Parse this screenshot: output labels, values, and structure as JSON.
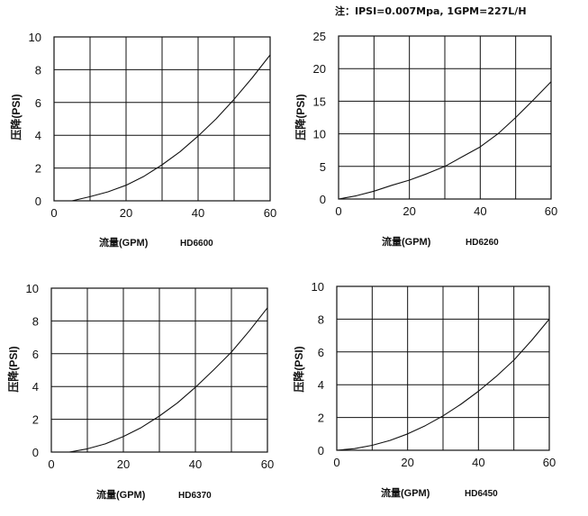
{
  "note": "注：IPSI=0.007Mpa, 1GPM=227L/H",
  "colors": {
    "axis": "#111111",
    "grid": "#111111",
    "curve": "#111111",
    "background": "#ffffff"
  },
  "chart_data": [
    {
      "type": "line",
      "model": "HD6600",
      "xlabel": "流量(GPM)",
      "ylabel": "压降(PSI)",
      "xlim": [
        0,
        60
      ],
      "ylim": [
        0,
        10
      ],
      "xticks": [
        0,
        20,
        40,
        60
      ],
      "yticks": [
        0,
        2,
        4,
        6,
        8,
        10
      ],
      "grid": true,
      "series": [
        {
          "x": [
            5,
            10,
            15,
            20,
            25,
            30,
            35,
            40,
            45,
            50,
            55,
            60
          ],
          "y": [
            0,
            0.25,
            0.55,
            0.95,
            1.5,
            2.2,
            3.0,
            3.95,
            5.0,
            6.2,
            7.5,
            8.9
          ]
        }
      ]
    },
    {
      "type": "line",
      "model": "HD6260",
      "xlabel": "流量(GPM)",
      "ylabel": "压降(PSI)",
      "xlim": [
        0,
        60
      ],
      "ylim": [
        0,
        25
      ],
      "xticks": [
        0,
        20,
        40,
        60
      ],
      "yticks": [
        0,
        5,
        10,
        15,
        20,
        25
      ],
      "grid": true,
      "series": [
        {
          "x": [
            0,
            5,
            10,
            15,
            20,
            25,
            30,
            35,
            40,
            45,
            50,
            55,
            60
          ],
          "y": [
            0,
            0.5,
            1.2,
            2.1,
            2.9,
            3.9,
            5.0,
            6.5,
            8.0,
            10.0,
            12.5,
            15.2,
            18.0
          ]
        }
      ]
    },
    {
      "type": "line",
      "model": "HD6370",
      "xlabel": "流量(GPM)",
      "ylabel": "压降(PSI)",
      "xlim": [
        0,
        60
      ],
      "ylim": [
        0,
        10
      ],
      "xticks": [
        0,
        20,
        40,
        60
      ],
      "yticks": [
        0,
        2,
        4,
        6,
        8,
        10
      ],
      "grid": true,
      "series": [
        {
          "x": [
            5,
            10,
            15,
            20,
            25,
            30,
            35,
            40,
            45,
            50,
            55,
            60
          ],
          "y": [
            0,
            0.2,
            0.5,
            0.95,
            1.5,
            2.2,
            3.0,
            3.95,
            5.0,
            6.1,
            7.4,
            8.8
          ]
        }
      ]
    },
    {
      "type": "line",
      "model": "HD6450",
      "xlabel": "流量(GPM)",
      "ylabel": "压降(PSI)",
      "xlim": [
        0,
        60
      ],
      "ylim": [
        0,
        10
      ],
      "xticks": [
        0,
        20,
        40,
        60
      ],
      "yticks": [
        0,
        2,
        4,
        6,
        8,
        10
      ],
      "grid": true,
      "series": [
        {
          "x": [
            0,
            5,
            10,
            15,
            20,
            25,
            30,
            35,
            40,
            45,
            50,
            55,
            60
          ],
          "y": [
            0,
            0.1,
            0.3,
            0.6,
            1.0,
            1.5,
            2.1,
            2.8,
            3.6,
            4.5,
            5.5,
            6.7,
            8.0
          ]
        }
      ]
    }
  ]
}
